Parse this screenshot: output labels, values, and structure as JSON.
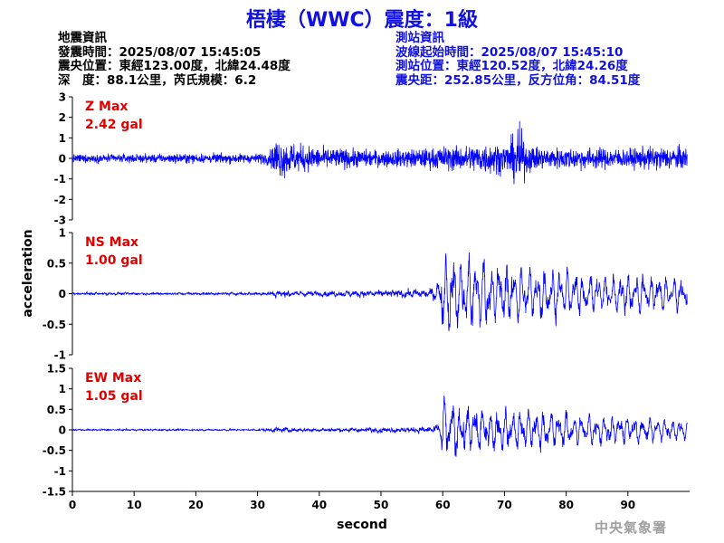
{
  "title": "梧棲（WWC）震度：1級",
  "event_info": {
    "heading": "地震資訊",
    "origin_time": "發震時間：2025/08/07 15:45:05",
    "epicenter": "震央位置：東經123.00度，北緯24.48度",
    "depth_mag": "深　度：88.1公里，芮氏規模：6.2"
  },
  "station_info": {
    "heading": "測站資訊",
    "arrival_time": "波線起始時間：2025/08/07 15:45:10",
    "location": "測站位置：東經120.52度，北緯24.26度",
    "distance": "震央距：252.85公里，反方位角：84.51度"
  },
  "agency": "中央氣象署",
  "colors": {
    "trace": "#0000ff",
    "max_label": "#e00000",
    "title": "#1010e0"
  },
  "chart_data": [
    {
      "type": "line",
      "component": "Z",
      "max_label": "Z Max",
      "max_value": "2.42 gal",
      "ylim": [
        -3,
        3
      ],
      "yticks": [
        -3,
        -2,
        -1,
        0,
        1,
        2,
        3
      ],
      "envelope": {
        "t": [
          0,
          10,
          20,
          30,
          32,
          33,
          36,
          40,
          45,
          50,
          55,
          58,
          60,
          63,
          66,
          68,
          70,
          71,
          72,
          72.5,
          73,
          74,
          76,
          80,
          85,
          90,
          95,
          99.5
        ],
        "amp": [
          0.3,
          0.3,
          0.35,
          0.35,
          0.5,
          1.5,
          1.1,
          0.8,
          0.7,
          0.6,
          0.7,
          0.75,
          0.9,
          0.9,
          1.1,
          1.2,
          1.0,
          1.3,
          2.2,
          2.4,
          1.6,
          1.0,
          0.8,
          0.8,
          0.8,
          0.7,
          0.9,
          0.8
        ]
      }
    },
    {
      "type": "line",
      "component": "NS",
      "max_label": "NS Max",
      "max_value": "1.00 gal",
      "ylim": [
        -1,
        1
      ],
      "yticks": [
        -1,
        -0.5,
        0,
        0.5,
        1
      ],
      "envelope": {
        "t": [
          0,
          10,
          20,
          30,
          32,
          33,
          36,
          40,
          45,
          50,
          55,
          58,
          59.5,
          60,
          62,
          65,
          68,
          70,
          72,
          75,
          80,
          85,
          90,
          95,
          99.5
        ],
        "amp": [
          0.05,
          0.05,
          0.05,
          0.06,
          0.1,
          0.15,
          0.12,
          0.1,
          0.12,
          0.15,
          0.18,
          0.2,
          0.3,
          0.8,
          0.8,
          0.75,
          0.7,
          0.65,
          0.55,
          0.55,
          0.45,
          0.4,
          0.4,
          0.35,
          0.3
        ]
      }
    },
    {
      "type": "line",
      "component": "EW",
      "max_label": "EW Max",
      "max_value": "1.05 gal",
      "ylim": [
        -1.5,
        1.5
      ],
      "yticks": [
        -1.5,
        -1,
        -0.5,
        0,
        0.5,
        1,
        1.5
      ],
      "envelope": {
        "t": [
          0,
          10,
          20,
          30,
          32,
          33,
          36,
          40,
          45,
          50,
          55,
          58,
          59.5,
          60,
          62,
          65,
          68,
          70,
          72,
          75,
          80,
          85,
          90,
          95,
          99.5
        ],
        "amp": [
          0.05,
          0.05,
          0.05,
          0.06,
          0.1,
          0.15,
          0.12,
          0.1,
          0.12,
          0.15,
          0.18,
          0.2,
          0.3,
          0.95,
          0.8,
          0.75,
          0.7,
          0.65,
          0.6,
          0.55,
          0.5,
          0.45,
          0.4,
          0.35,
          0.3
        ]
      }
    }
  ],
  "x_axis": {
    "label": "second",
    "xlim": [
      0,
      100
    ],
    "ticks": [
      0,
      10,
      20,
      30,
      40,
      50,
      60,
      70,
      80,
      90
    ]
  },
  "y_axis_label": "acceleration"
}
